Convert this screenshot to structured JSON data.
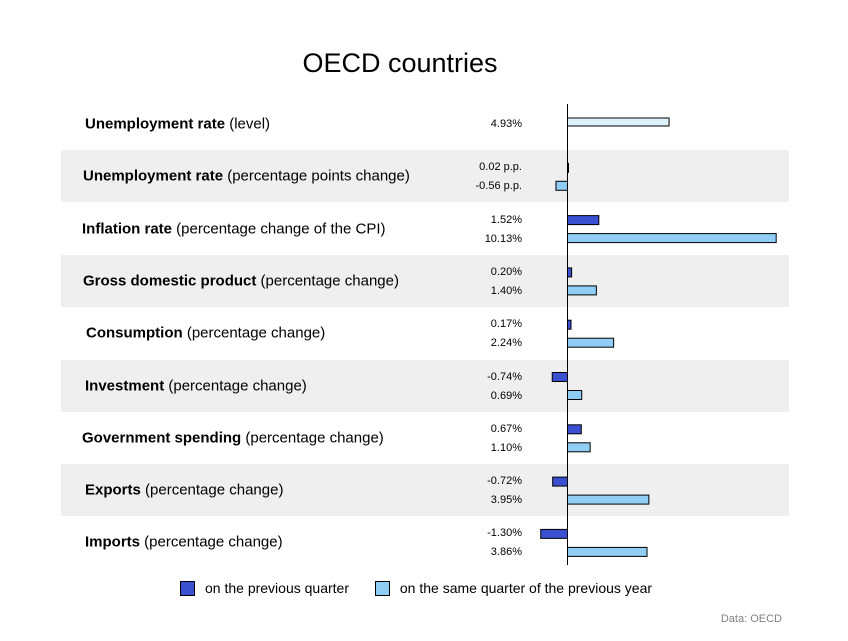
{
  "chart_data": {
    "type": "bar",
    "orientation": "horizontal",
    "title": "OECD countries",
    "categories": [
      {
        "bold": "Unemployment rate",
        "rest": " (level)"
      },
      {
        "bold": "Unemployment rate",
        "rest": " (percentage points change)"
      },
      {
        "bold": "Inflation rate",
        "rest": " (percentage change of the CPI)"
      },
      {
        "bold": "Gross domestic product",
        "rest": " (percentage change)"
      },
      {
        "bold": "Consumption",
        "rest": " (percentage change)"
      },
      {
        "bold": "Investment",
        "rest": " (percentage change)"
      },
      {
        "bold": "Government spending",
        "rest": " (percentage change)"
      },
      {
        "bold": "Exports",
        "rest": " (percentage change)"
      },
      {
        "bold": "Imports",
        "rest": " (percentage change)"
      }
    ],
    "series": [
      {
        "name": "on the previous quarter",
        "color": "#3a50d0",
        "values": [
          null,
          0.02,
          1.52,
          0.2,
          0.17,
          -0.74,
          0.67,
          -0.72,
          -1.3
        ],
        "labels": [
          "",
          "0.02 p.p.",
          "1.52%",
          "0.20%",
          "0.17%",
          "-0.74%",
          "0.67%",
          "-0.72%",
          "-1.30%"
        ]
      },
      {
        "name": "on the same quarter of the previous year",
        "color": "#8fcdf5",
        "values": [
          null,
          -0.56,
          10.13,
          1.4,
          2.24,
          0.69,
          1.1,
          3.95,
          3.86
        ],
        "labels": [
          "",
          "-0.56 p.p.",
          "10.13%",
          "1.40%",
          "2.24%",
          "0.69%",
          "1.10%",
          "3.95%",
          "3.86%"
        ]
      }
    ],
    "level": {
      "value": 4.93,
      "label": "4.93%",
      "color": "#def2fc"
    },
    "legend_position": "bottom",
    "source": "Data: OECD"
  }
}
